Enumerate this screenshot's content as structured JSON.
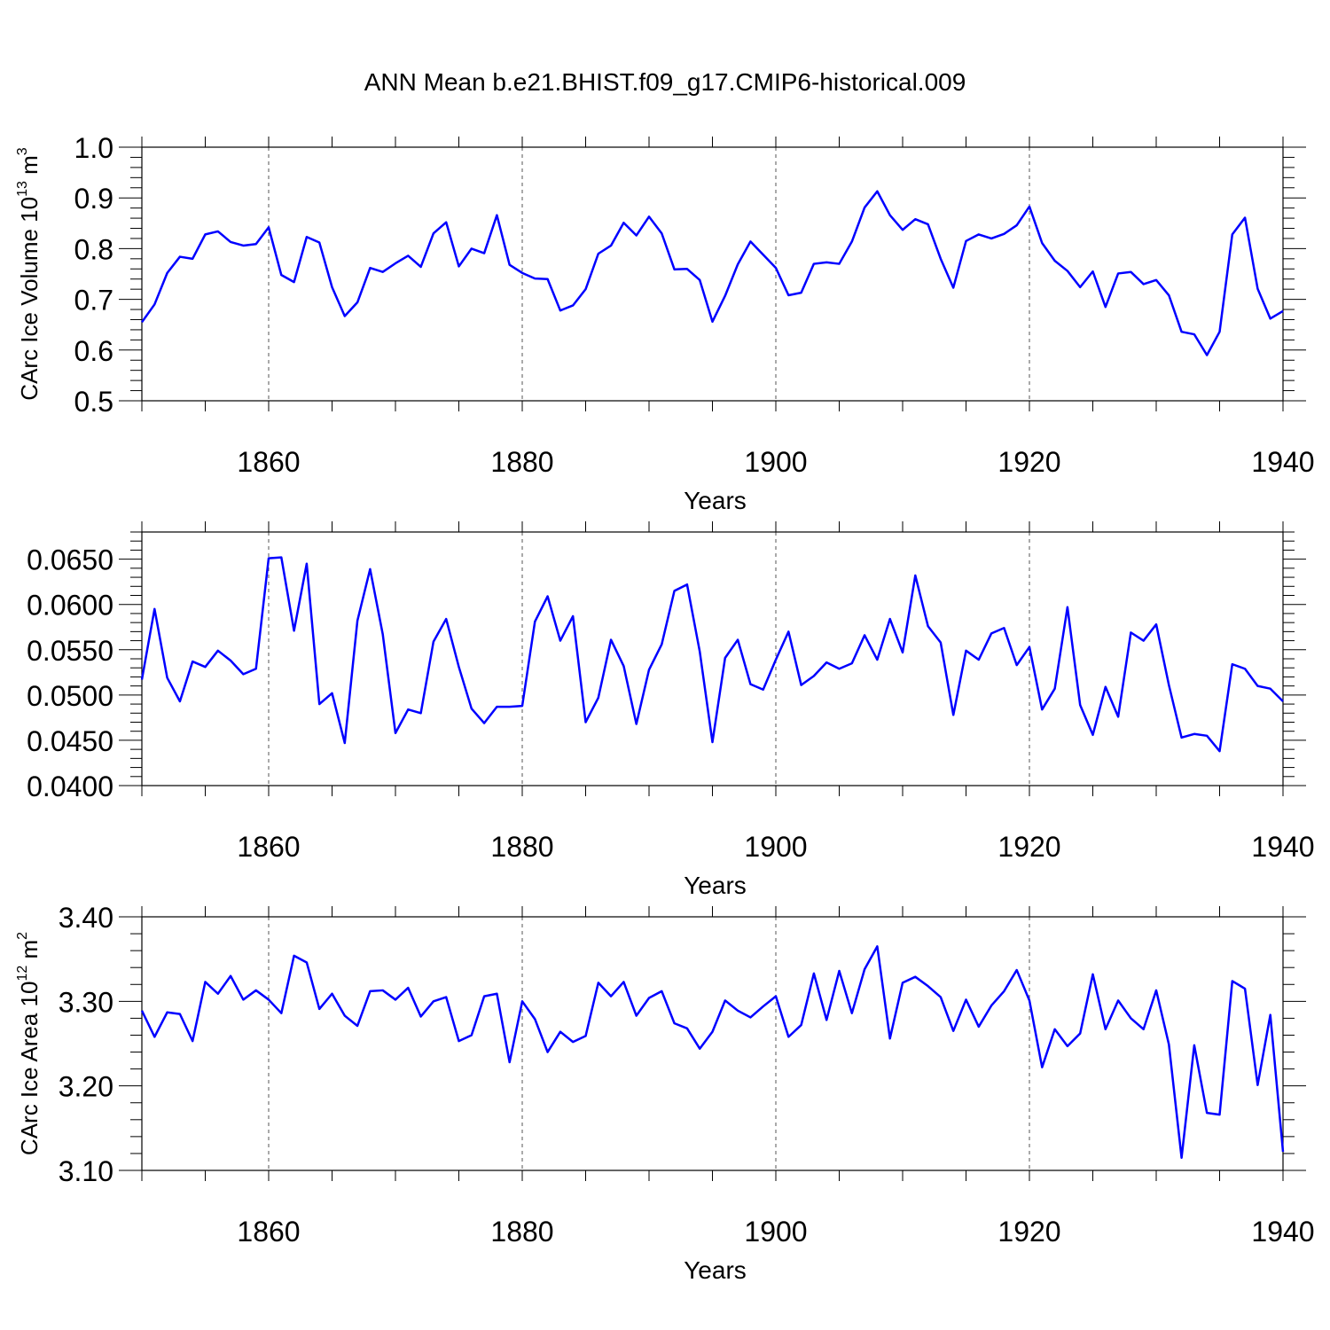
{
  "title": "ANN Mean b.e21.BHIST.f09_g17.CMIP6-historical.009",
  "style": {
    "line_color": "#0000ff",
    "axis_color": "#000000",
    "grid": "dashed vertical at major x ticks"
  },
  "chart_data": [
    {
      "type": "line",
      "ylabel": "CArc Ice Volume 10",
      "ylabel_sup": "13",
      "ylabel_unit": " m",
      "ylabel_unit_sup": "3",
      "xlabel": "Years",
      "xlim": [
        1850,
        1940
      ],
      "ylim": [
        0.5,
        1.0
      ],
      "xticks": [
        "1860",
        "1880",
        "1900",
        "1920",
        "1940"
      ],
      "yticks": [
        "0.5",
        "0.6",
        "0.7",
        "0.8",
        "0.9",
        "1.0"
      ],
      "x_start": 1850,
      "values": [
        0.655,
        0.69,
        0.752,
        0.784,
        0.78,
        0.828,
        0.834,
        0.813,
        0.806,
        0.809,
        0.842,
        0.748,
        0.734,
        0.823,
        0.812,
        0.724,
        0.667,
        0.694,
        0.762,
        0.754,
        0.771,
        0.786,
        0.764,
        0.83,
        0.852,
        0.765,
        0.8,
        0.791,
        0.866,
        0.768,
        0.752,
        0.741,
        0.74,
        0.678,
        0.688,
        0.72,
        0.79,
        0.806,
        0.851,
        0.826,
        0.863,
        0.83,
        0.759,
        0.76,
        0.738,
        0.656,
        0.707,
        0.769,
        0.814,
        0.788,
        0.762,
        0.708,
        0.713,
        0.77,
        0.773,
        0.77,
        0.814,
        0.881,
        0.913,
        0.866,
        0.837,
        0.858,
        0.848,
        0.78,
        0.723,
        0.815,
        0.828,
        0.82,
        0.829,
        0.846,
        0.883,
        0.811,
        0.776,
        0.756,
        0.724,
        0.755,
        0.685,
        0.751,
        0.754,
        0.73,
        0.738,
        0.708,
        0.636,
        0.631,
        0.59,
        0.636,
        0.828,
        0.861,
        0.721,
        0.662,
        0.677
      ]
    },
    {
      "type": "line",
      "ylabel": "",
      "xlabel": "Years",
      "xlim": [
        1850,
        1940
      ],
      "ylim": [
        0.04,
        0.068
      ],
      "xticks": [
        "1860",
        "1880",
        "1900",
        "1920",
        "1940"
      ],
      "yticks": [
        "0.0400",
        "0.0450",
        "0.0500",
        "0.0550",
        "0.0600",
        "0.0650"
      ],
      "x_start": 1850,
      "values": [
        0.0517,
        0.0595,
        0.0519,
        0.0493,
        0.0537,
        0.0531,
        0.0549,
        0.0538,
        0.0523,
        0.0529,
        0.0651,
        0.0652,
        0.0571,
        0.0645,
        0.049,
        0.0502,
        0.0447,
        0.0582,
        0.0639,
        0.0567,
        0.0458,
        0.0484,
        0.048,
        0.0559,
        0.0584,
        0.0531,
        0.0485,
        0.0469,
        0.0487,
        0.0487,
        0.0488,
        0.0581,
        0.0609,
        0.056,
        0.0587,
        0.047,
        0.0497,
        0.0561,
        0.0532,
        0.0468,
        0.0528,
        0.0556,
        0.0615,
        0.0622,
        0.0548,
        0.0448,
        0.0541,
        0.0561,
        0.0512,
        0.0506,
        0.0539,
        0.057,
        0.0511,
        0.0521,
        0.0536,
        0.0529,
        0.0535,
        0.0566,
        0.0539,
        0.0584,
        0.0547,
        0.0632,
        0.0576,
        0.0558,
        0.0478,
        0.0549,
        0.0539,
        0.0568,
        0.0574,
        0.0533,
        0.0553,
        0.0484,
        0.0507,
        0.0597,
        0.0489,
        0.0456,
        0.0509,
        0.0476,
        0.0569,
        0.056,
        0.0578,
        0.0511,
        0.0453,
        0.0457,
        0.0455,
        0.0438,
        0.0534,
        0.0529,
        0.051,
        0.0507,
        0.0493
      ]
    },
    {
      "type": "line",
      "ylabel": "CArc Ice Area 10",
      "ylabel_sup": "12",
      "ylabel_unit": " m",
      "ylabel_unit_sup": "2",
      "xlabel": "Years",
      "xlim": [
        1850,
        1940
      ],
      "ylim": [
        3.1,
        3.4
      ],
      "xticks": [
        "1860",
        "1880",
        "1900",
        "1920",
        "1940"
      ],
      "yticks": [
        "3.10",
        "3.20",
        "3.30",
        "3.40"
      ],
      "x_start": 1850,
      "values": [
        3.289,
        3.258,
        3.287,
        3.285,
        3.253,
        3.323,
        3.309,
        3.33,
        3.302,
        3.313,
        3.302,
        3.286,
        3.354,
        3.346,
        3.291,
        3.309,
        3.283,
        3.271,
        3.312,
        3.313,
        3.302,
        3.316,
        3.282,
        3.3,
        3.305,
        3.253,
        3.26,
        3.306,
        3.309,
        3.228,
        3.3,
        3.279,
        3.24,
        3.264,
        3.252,
        3.259,
        3.322,
        3.306,
        3.323,
        3.283,
        3.304,
        3.312,
        3.274,
        3.268,
        3.244,
        3.264,
        3.301,
        3.289,
        3.281,
        3.294,
        3.306,
        3.258,
        3.272,
        3.333,
        3.278,
        3.336,
        3.286,
        3.338,
        3.365,
        3.256,
        3.322,
        3.329,
        3.318,
        3.305,
        3.265,
        3.302,
        3.27,
        3.295,
        3.312,
        3.337,
        3.301,
        3.222,
        3.267,
        3.247,
        3.262,
        3.332,
        3.267,
        3.301,
        3.28,
        3.267,
        3.313,
        3.249,
        3.115,
        3.248,
        3.168,
        3.166,
        3.324,
        3.315,
        3.201,
        3.284,
        3.122
      ]
    }
  ]
}
